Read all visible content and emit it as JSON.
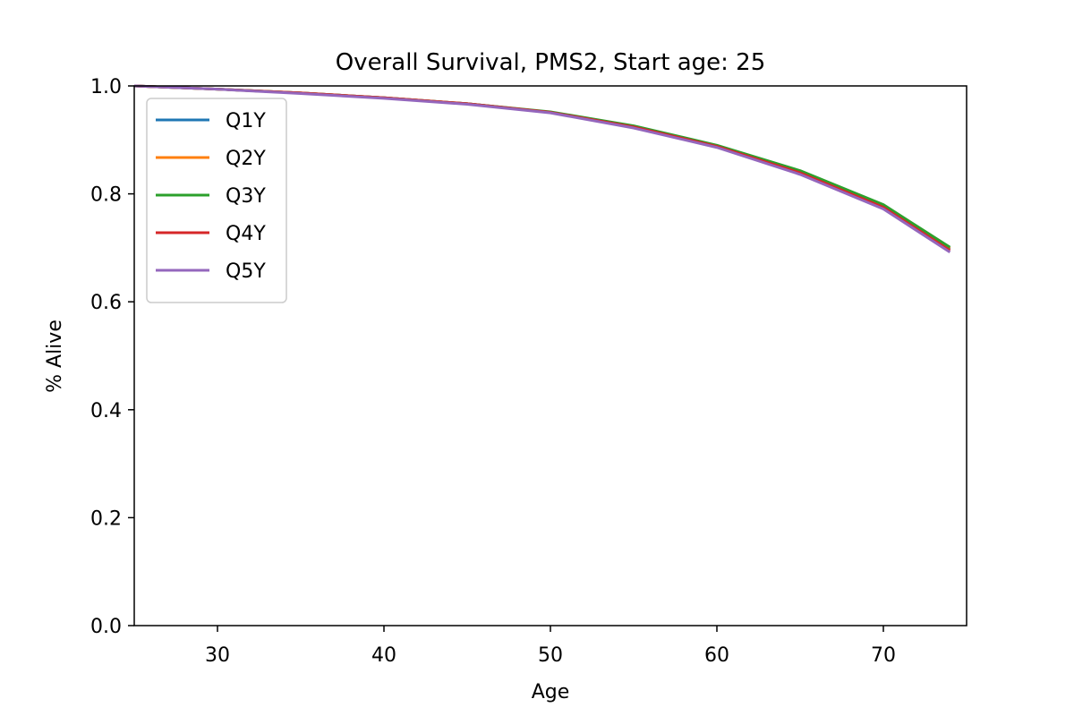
{
  "chart_data": {
    "type": "line",
    "title": "Overall Survival, PMS2, Start age: 25",
    "xlabel": "Age",
    "ylabel": "% Alive",
    "xlim": [
      25,
      75
    ],
    "ylim": [
      0.0,
      1.0
    ],
    "x_ticks": [
      30,
      40,
      50,
      60,
      70
    ],
    "y_ticks": [
      0.0,
      0.2,
      0.4,
      0.6,
      0.8,
      1.0
    ],
    "x_tick_labels": [
      "30",
      "40",
      "50",
      "60",
      "70"
    ],
    "y_tick_labels": [
      "0.0",
      "0.2",
      "0.4",
      "0.6",
      "0.8",
      "1.0"
    ],
    "grid": false,
    "legend_position": "upper-left",
    "x": [
      25,
      30,
      35,
      40,
      45,
      50,
      55,
      60,
      65,
      70,
      74
    ],
    "series": [
      {
        "name": "Q1Y",
        "color": "#1f77b4",
        "values": [
          1.0,
          0.994,
          0.987,
          0.978,
          0.967,
          0.951,
          0.924,
          0.888,
          0.839,
          0.776,
          0.697
        ]
      },
      {
        "name": "Q2Y",
        "color": "#ff7f0e",
        "values": [
          1.0,
          0.994,
          0.987,
          0.978,
          0.967,
          0.951,
          0.925,
          0.889,
          0.841,
          0.778,
          0.699
        ]
      },
      {
        "name": "Q3Y",
        "color": "#2ca02c",
        "values": [
          1.0,
          0.994,
          0.987,
          0.978,
          0.967,
          0.952,
          0.926,
          0.89,
          0.843,
          0.78,
          0.701
        ]
      },
      {
        "name": "Q4Y",
        "color": "#d62728",
        "values": [
          1.0,
          0.994,
          0.987,
          0.978,
          0.967,
          0.951,
          0.924,
          0.888,
          0.839,
          0.775,
          0.695
        ]
      },
      {
        "name": "Q5Y",
        "color": "#9467bd",
        "values": [
          1.0,
          0.994,
          0.986,
          0.977,
          0.966,
          0.95,
          0.922,
          0.886,
          0.836,
          0.772,
          0.692
        ]
      }
    ]
  }
}
